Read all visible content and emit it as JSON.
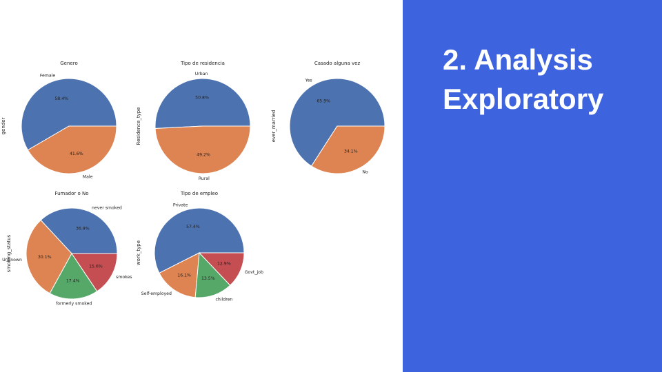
{
  "slide": {
    "title": "2. Analysis\nExploratory"
  },
  "colors": [
    "#4c72b0",
    "#dd8452",
    "#55a868",
    "#c44e52"
  ],
  "chart_data": [
    {
      "type": "pie",
      "title": "Genero",
      "ylabel": "gender",
      "categories": [
        "Female",
        "Male"
      ],
      "values": [
        58.4,
        41.6
      ],
      "pct_labels": [
        "58.4%",
        "41.6%"
      ]
    },
    {
      "type": "pie",
      "title": "Tipo de residencia",
      "ylabel": "Residence_type",
      "categories": [
        "Urban",
        "Rural"
      ],
      "values": [
        50.8,
        49.2
      ],
      "pct_labels": [
        "50.8%",
        "49.2%"
      ]
    },
    {
      "type": "pie",
      "title": "Casado alguna vez",
      "ylabel": "ever_married",
      "categories": [
        "Yes",
        "No"
      ],
      "values": [
        65.9,
        34.1
      ],
      "pct_labels": [
        "65.9%",
        "34.1%"
      ]
    },
    {
      "type": "pie",
      "title": "Fumador o No",
      "ylabel": "smoking_status",
      "categories": [
        "never smoked",
        "Unknown",
        "formerly smoked",
        "smokes"
      ],
      "values": [
        36.9,
        30.1,
        17.4,
        15.6
      ],
      "pct_labels": [
        "36.9%",
        "30.1%",
        "17.4%",
        "15.6%"
      ]
    },
    {
      "type": "pie",
      "title": "Tipo de empleo",
      "ylabel": "work_type",
      "categories": [
        "Private",
        "Self-employed",
        "children",
        "Govt_job"
      ],
      "values": [
        57.4,
        16.1,
        13.5,
        12.9
      ],
      "pct_labels": [
        "57.4%",
        "16.1%",
        "13.5%",
        "12.9%"
      ]
    }
  ]
}
